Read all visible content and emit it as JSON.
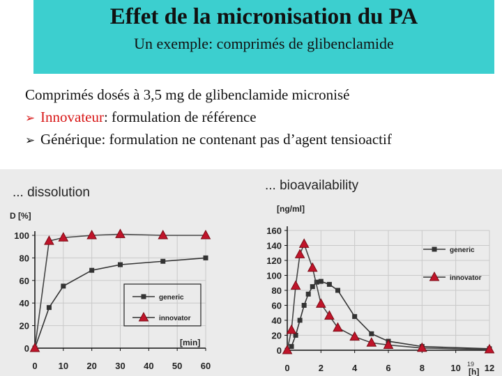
{
  "header": {
    "title": "Effet de la micronisation du PA",
    "subtitle": "Un exemple: comprimés de glibenclamide"
  },
  "body": {
    "intro": "Comprimés dosés à 3,5 mg de glibenclamide micronisé",
    "bullets": [
      {
        "arrow": "➢",
        "highlight": "Innovateur",
        "rest": ": formulation de référence"
      },
      {
        "arrow": "➢",
        "highlight": "",
        "rest": "Générique: formulation ne contenant pas d’agent tensioactif"
      }
    ]
  },
  "slide_number": "19",
  "chart_data": [
    {
      "type": "line",
      "title": "... dissolution",
      "ylabel": "D [%]",
      "xlabel": "[min]",
      "xlim": [
        0,
        60
      ],
      "ylim": [
        0,
        100
      ],
      "xticks": [
        0,
        10,
        20,
        30,
        40,
        50,
        60
      ],
      "yticks": [
        0,
        20,
        40,
        60,
        80,
        100
      ],
      "legend_position": "bottom-right",
      "series": [
        {
          "name": "generic",
          "marker": "square",
          "x": [
            0,
            5,
            10,
            20,
            30,
            45,
            60
          ],
          "y": [
            0,
            36,
            55,
            69,
            74,
            77,
            80
          ]
        },
        {
          "name": "innovator",
          "marker": "triangle",
          "color": "#c0142a",
          "x": [
            0,
            5,
            10,
            20,
            30,
            45,
            60
          ],
          "y": [
            0,
            95,
            98,
            100,
            101,
            100,
            100
          ]
        }
      ]
    },
    {
      "type": "line",
      "title": "... bioavailability",
      "ylabel": "[ng/ml]",
      "xlabel": "[h]",
      "xlim": [
        0,
        12
      ],
      "ylim": [
        0,
        160
      ],
      "xticks": [
        0,
        2,
        4,
        6,
        8,
        10,
        12
      ],
      "yticks": [
        0,
        20,
        40,
        60,
        80,
        100,
        120,
        140,
        160
      ],
      "legend_position": "right",
      "series": [
        {
          "name": "generic",
          "marker": "square",
          "x": [
            0,
            0.25,
            0.5,
            0.75,
            1,
            1.25,
            1.5,
            1.75,
            2,
            2.5,
            3,
            4,
            5,
            6,
            8,
            12
          ],
          "y": [
            0,
            5,
            20,
            40,
            60,
            75,
            85,
            91,
            92,
            88,
            80,
            45,
            22,
            12,
            5,
            2
          ]
        },
        {
          "name": "innovator",
          "marker": "triangle",
          "color": "#c0142a",
          "x": [
            0,
            0.25,
            0.5,
            0.75,
            1,
            1.5,
            2,
            2.5,
            3,
            4,
            5,
            6,
            8,
            12
          ],
          "y": [
            0,
            27,
            86,
            128,
            142,
            110,
            62,
            46,
            30,
            18,
            10,
            7,
            3,
            1
          ]
        }
      ]
    }
  ]
}
